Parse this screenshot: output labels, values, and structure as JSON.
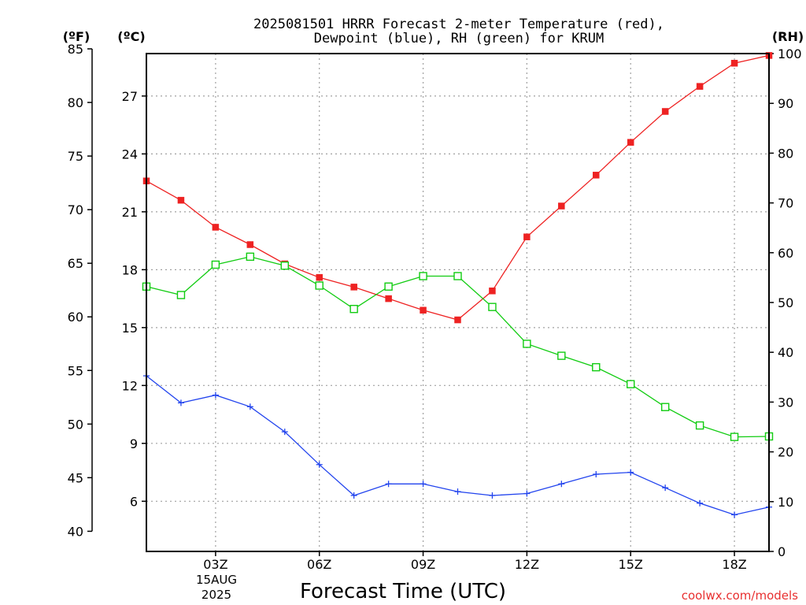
{
  "colors": {
    "temperature": "#ee2222",
    "dewpoint": "#2244ee",
    "rh": "#11cc11",
    "grid": "#a0a0a0",
    "credit": "#e83030"
  },
  "chart_data": {
    "type": "line",
    "title_line1": "2025081501 HRRR Forecast 2-meter Temperature (red),",
    "title_line2": "Dewpoint (blue), RH (green) for KRUM",
    "xlabel": "Forecast Time (UTC)",
    "date_line1": "15AUG",
    "date_line2": "2025",
    "credit": "coolwx.com/models",
    "unit_left_f": "(ºF)",
    "unit_left_c": "(ºC)",
    "unit_right": "(RH)",
    "x": [
      1,
      2,
      3,
      4,
      5,
      6,
      7,
      8,
      9,
      10,
      11,
      12,
      13,
      14,
      15,
      16,
      17,
      18,
      19
    ],
    "xlim": [
      1,
      19
    ],
    "x_ticks": [
      {
        "x": 3,
        "label": "03Z"
      },
      {
        "x": 6,
        "label": "06Z"
      },
      {
        "x": 9,
        "label": "09Z"
      },
      {
        "x": 12,
        "label": "12Z"
      },
      {
        "x": 15,
        "label": "15Z"
      },
      {
        "x": 18,
        "label": "18Z"
      }
    ],
    "celsius_range": [
      3.4,
      29.2
    ],
    "celsius_ticks": [
      "6",
      "9",
      "12",
      "15",
      "18",
      "21",
      "24",
      "27"
    ],
    "fahrenheit_ticks": [
      "40",
      "45",
      "50",
      "55",
      "60",
      "65",
      "70",
      "75",
      "80",
      "85"
    ],
    "rh_range": [
      0,
      100
    ],
    "rh_ticks": [
      "0",
      "10",
      "20",
      "30",
      "40",
      "50",
      "60",
      "70",
      "80",
      "90",
      "100"
    ],
    "grid": true,
    "series": [
      {
        "name": "Temperature",
        "key": "temperature",
        "marker": "filled-square",
        "values": [
          22.6,
          21.6,
          20.2,
          19.3,
          18.3,
          17.6,
          17.1,
          16.5,
          15.9,
          15.4,
          16.9,
          19.7,
          21.3,
          22.9,
          24.6,
          26.2,
          27.5,
          28.7,
          29.1
        ]
      },
      {
        "name": "Dewpoint",
        "key": "dewpoint",
        "marker": "plus",
        "values": [
          12.5,
          11.1,
          11.5,
          10.9,
          9.6,
          7.9,
          6.3,
          6.9,
          6.9,
          6.5,
          6.3,
          6.4,
          6.9,
          7.4,
          7.5,
          6.7,
          5.9,
          5.3,
          5.7
        ]
      },
      {
        "name": "RH",
        "key": "rh",
        "marker": "open-square",
        "values": [
          53.2,
          51.5,
          57.6,
          59.2,
          57.4,
          53.4,
          48.7,
          53.2,
          55.3,
          55.3,
          49.1,
          41.7,
          39.3,
          37.0,
          33.6,
          29.0,
          25.3,
          23.0,
          23.1
        ]
      }
    ]
  }
}
